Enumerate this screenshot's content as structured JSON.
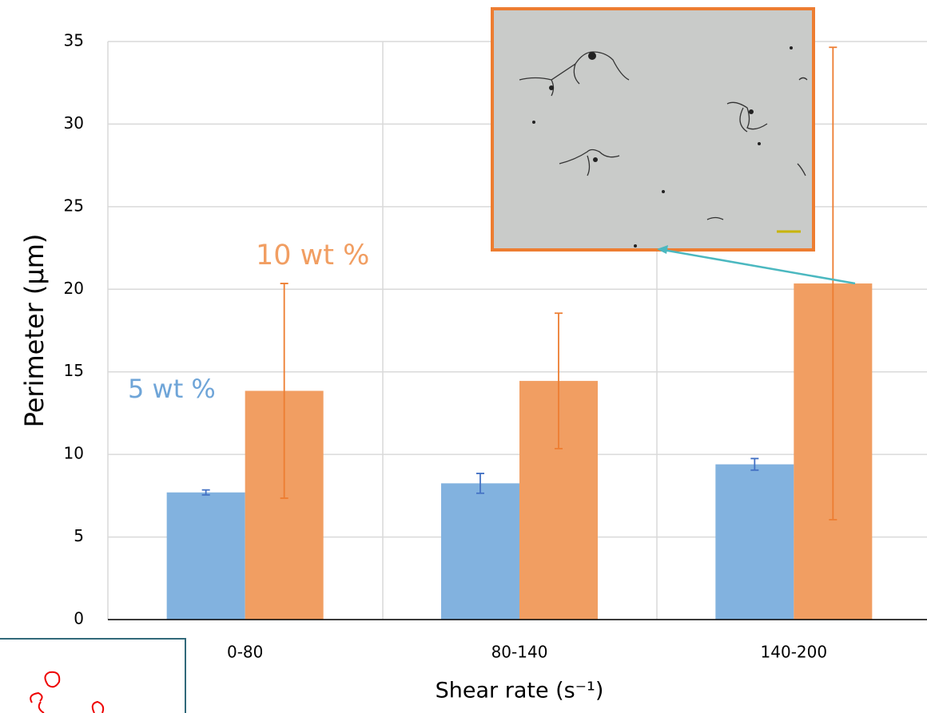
{
  "chart_data": {
    "type": "bar",
    "x_label": "Shear rate (s⁻¹)",
    "y_label": "Perimeter (µm)",
    "categories": [
      "0-80",
      "80-140",
      "140-200"
    ],
    "series": [
      {
        "name": "5 wt %",
        "color": "#82b2df",
        "error_color": "#4472c4",
        "values": [
          7.7,
          8.25,
          9.4
        ],
        "errors": [
          0.15,
          0.6,
          0.35
        ]
      },
      {
        "name": "10 wt %",
        "color": "#f19e62",
        "error_color": "#ed7d31",
        "values": [
          13.85,
          14.45,
          20.35
        ],
        "errors": [
          6.5,
          4.1,
          14.3
        ]
      }
    ],
    "ylim": [
      0,
      35
    ],
    "yticks": [
      0,
      5,
      10,
      15,
      20,
      25,
      30,
      35
    ],
    "grid": true
  }
}
